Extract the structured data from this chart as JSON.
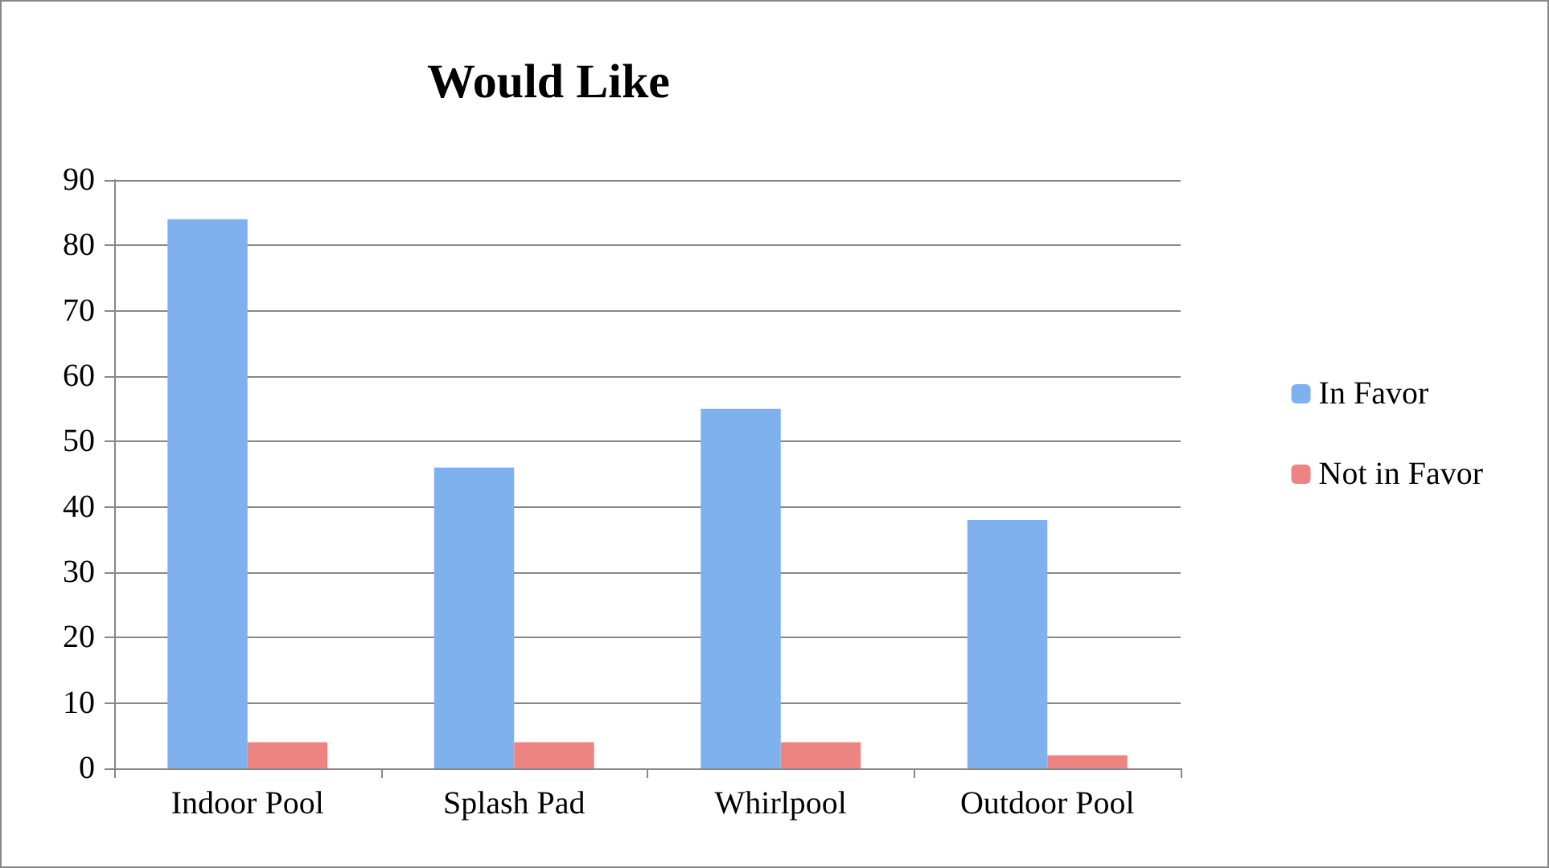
{
  "chart_data": {
    "type": "bar",
    "title": "Would Like",
    "categories": [
      "Indoor Pool",
      "Splash Pad",
      "Whirlpool",
      "Outdoor Pool"
    ],
    "series": [
      {
        "name": "In Favor",
        "color": "#7fb1ef",
        "values": [
          84,
          46,
          55,
          38
        ]
      },
      {
        "name": "Not in Favor",
        "color": "#ee8481",
        "values": [
          4,
          4,
          4,
          2
        ]
      }
    ],
    "ylim": [
      0,
      90
    ],
    "yticks": [
      0,
      10,
      20,
      30,
      40,
      50,
      60,
      70,
      80,
      90
    ],
    "grid": "y",
    "legend": "right"
  }
}
